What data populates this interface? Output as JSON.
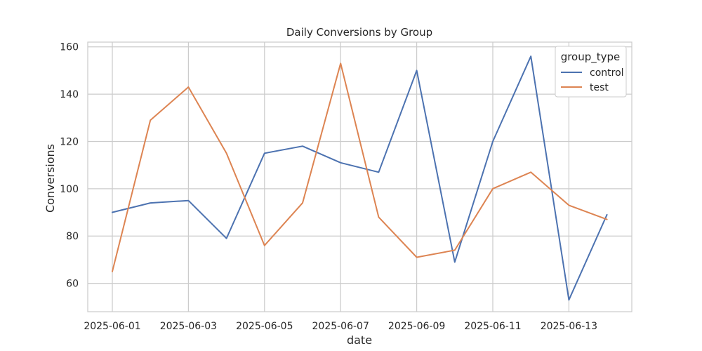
{
  "chart_data": {
    "type": "line",
    "title": "Daily Conversions by Group",
    "xlabel": "date",
    "ylabel": "Conversions",
    "x": [
      "2025-06-01",
      "2025-06-02",
      "2025-06-03",
      "2025-06-04",
      "2025-06-05",
      "2025-06-06",
      "2025-06-07",
      "2025-06-08",
      "2025-06-09",
      "2025-06-10",
      "2025-06-11",
      "2025-06-12",
      "2025-06-13",
      "2025-06-14"
    ],
    "x_tick_labels": [
      "2025-06-01",
      "2025-06-03",
      "2025-06-05",
      "2025-06-07",
      "2025-06-09",
      "2025-06-11",
      "2025-06-13"
    ],
    "y_ticks": [
      60,
      80,
      100,
      120,
      140,
      160
    ],
    "ylim": [
      48,
      162
    ],
    "grid": true,
    "legend": {
      "title": "group_type",
      "placement": "top-right"
    },
    "series": [
      {
        "name": "control",
        "color": "#4c72b0",
        "values": [
          90,
          94,
          95,
          79,
          115,
          118,
          111,
          107,
          150,
          69,
          120,
          156,
          53,
          89
        ]
      },
      {
        "name": "test",
        "color": "#dd8452",
        "values": [
          65,
          129,
          143,
          115,
          76,
          94,
          153,
          88,
          71,
          74,
          100,
          107,
          93,
          87
        ]
      }
    ]
  }
}
